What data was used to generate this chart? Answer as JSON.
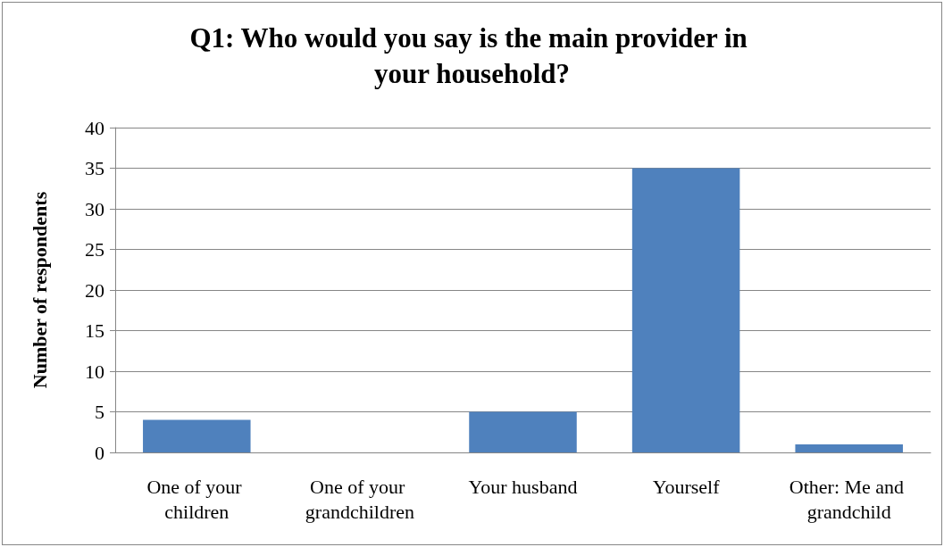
{
  "chart_data": {
    "type": "bar",
    "title": "Q1: Who would you say is the main provider in your household?",
    "ylabel": "Number of respondents",
    "categories": [
      "One of your children",
      "One of your grandchildren",
      "Your husband",
      "Yourself",
      "Other: Me and grandchild"
    ],
    "values": [
      4,
      0,
      5,
      35,
      1
    ],
    "color": "#4f81bd",
    "ylim": [
      0,
      40
    ],
    "yticks": [
      0,
      5,
      10,
      15,
      20,
      25,
      30,
      35,
      40
    ],
    "grid": "y"
  }
}
